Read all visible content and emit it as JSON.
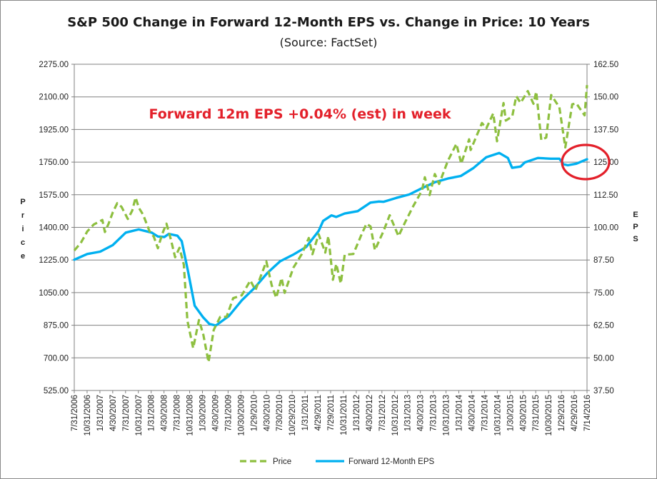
{
  "chart_data": {
    "type": "line",
    "title": "S&P 500 Change in Forward 12-Month EPS vs. Change in Price: 10 Years",
    "subtitle": "(Source: FactSet)",
    "ylabel": "Price",
    "y2label": "EPS",
    "ylim": [
      525,
      2275
    ],
    "y2lim": [
      37.5,
      162.5
    ],
    "y_ticks": [
      "2275.00",
      "2100.00",
      "1925.00",
      "1750.00",
      "1575.00",
      "1400.00",
      "1225.00",
      "1050.00",
      "875.00",
      "700.00",
      "525.00"
    ],
    "y2_ticks": [
      "162.50",
      "150.00",
      "137.50",
      "125.00",
      "112.50",
      "100.00",
      "87.50",
      "75.00",
      "62.50",
      "50.00",
      "37.50"
    ],
    "x_tick_labels": [
      "7/31/2006",
      "10/31/2006",
      "1/31/2007",
      "4/30/2007",
      "7/31/2007",
      "10/31/2007",
      "1/31/2008",
      "4/30/2008",
      "7/31/2008",
      "10/31/2008",
      "1/30/2009",
      "4/30/2009",
      "7/31/2009",
      "10/30/2009",
      "1/29/2010",
      "4/30/2010",
      "7/30/2010",
      "10/29/2010",
      "1/31/2011",
      "4/29/2011",
      "7/29/2011",
      "10/31/2011",
      "1/31/2012",
      "4/30/2012",
      "7/31/2012",
      "10/31/2012",
      "1/31/2013",
      "4/30/2013",
      "7/31/2013",
      "10/31/2013",
      "1/31/2014",
      "4/30/2014",
      "7/31/2014",
      "10/31/2014",
      "1/30/2015",
      "4/30/2015",
      "7/31/2015",
      "10/30/2015",
      "1/29/2016",
      "4/29/2016",
      "7/14/2016"
    ],
    "grid": "horizontal",
    "legend_position": "bottom",
    "series": [
      {
        "name": "Price",
        "axis": "left",
        "color": "#8DBF3F",
        "style": "dashed",
        "points": [
          [
            "2006-07-31",
            1276
          ],
          [
            "2006-09-15",
            1316
          ],
          [
            "2006-10-31",
            1378
          ],
          [
            "2006-12-15",
            1415
          ],
          [
            "2007-01-15",
            1427
          ],
          [
            "2007-02-15",
            1440
          ],
          [
            "2007-03-05",
            1375
          ],
          [
            "2007-04-01",
            1421
          ],
          [
            "2007-05-01",
            1482
          ],
          [
            "2007-06-01",
            1530
          ],
          [
            "2007-07-01",
            1510
          ],
          [
            "2007-08-15",
            1445
          ],
          [
            "2007-09-15",
            1490
          ],
          [
            "2007-10-09",
            1560
          ],
          [
            "2007-11-01",
            1505
          ],
          [
            "2007-12-01",
            1468
          ],
          [
            "2008-01-15",
            1380
          ],
          [
            "2008-02-15",
            1350
          ],
          [
            "2008-03-15",
            1288
          ],
          [
            "2008-04-15",
            1365
          ],
          [
            "2008-05-15",
            1420
          ],
          [
            "2008-06-15",
            1335
          ],
          [
            "2008-07-15",
            1240
          ],
          [
            "2008-08-15",
            1290
          ],
          [
            "2008-09-15",
            1200
          ],
          [
            "2008-10-10",
            900
          ],
          [
            "2008-11-20",
            752
          ],
          [
            "2008-12-31",
            903
          ],
          [
            "2009-01-31",
            825
          ],
          [
            "2009-03-09",
            677
          ],
          [
            "2009-04-15",
            850
          ],
          [
            "2009-05-31",
            920
          ],
          [
            "2009-07-15",
            920
          ],
          [
            "2009-08-31",
            1020
          ],
          [
            "2009-10-31",
            1036
          ],
          [
            "2009-12-31",
            1115
          ],
          [
            "2010-02-05",
            1063
          ],
          [
            "2010-04-23",
            1217
          ],
          [
            "2010-05-31",
            1089
          ],
          [
            "2010-07-02",
            1022
          ],
          [
            "2010-08-09",
            1128
          ],
          [
            "2010-08-31",
            1049
          ],
          [
            "2010-10-31",
            1183
          ],
          [
            "2010-12-31",
            1257
          ],
          [
            "2011-02-18",
            1343
          ],
          [
            "2011-03-16",
            1256
          ],
          [
            "2011-04-29",
            1363
          ],
          [
            "2011-06-15",
            1265
          ],
          [
            "2011-07-07",
            1353
          ],
          [
            "2011-08-08",
            1119
          ],
          [
            "2011-09-01",
            1204
          ],
          [
            "2011-10-03",
            1099
          ],
          [
            "2011-10-31",
            1253
          ],
          [
            "2011-12-31",
            1257
          ],
          [
            "2012-02-29",
            1365
          ],
          [
            "2012-04-02",
            1419
          ],
          [
            "2012-05-01",
            1405
          ],
          [
            "2012-06-01",
            1278
          ],
          [
            "2012-07-31",
            1379
          ],
          [
            "2012-09-14",
            1465
          ],
          [
            "2012-11-15",
            1353
          ],
          [
            "2012-12-31",
            1426
          ],
          [
            "2013-02-28",
            1514
          ],
          [
            "2013-04-30",
            1597
          ],
          [
            "2013-05-21",
            1669
          ],
          [
            "2013-06-24",
            1573
          ],
          [
            "2013-07-31",
            1686
          ],
          [
            "2013-08-30",
            1633
          ],
          [
            "2013-10-31",
            1756
          ],
          [
            "2013-12-31",
            1848
          ],
          [
            "2014-02-03",
            1742
          ],
          [
            "2014-03-31",
            1872
          ],
          [
            "2014-04-11",
            1815
          ],
          [
            "2014-06-30",
            1960
          ],
          [
            "2014-07-31",
            1931
          ],
          [
            "2014-09-18",
            2011
          ],
          [
            "2014-10-15",
            1862
          ],
          [
            "2014-11-30",
            2067
          ],
          [
            "2014-12-16",
            1973
          ],
          [
            "2015-01-31",
            1995
          ],
          [
            "2015-02-28",
            2104
          ],
          [
            "2015-03-31",
            2068
          ],
          [
            "2015-05-21",
            2131
          ],
          [
            "2015-06-30",
            2063
          ],
          [
            "2015-07-20",
            2128
          ],
          [
            "2015-08-25",
            1868
          ],
          [
            "2015-09-29",
            1882
          ],
          [
            "2015-11-03",
            2110
          ],
          [
            "2015-12-31",
            2044
          ],
          [
            "2016-02-11",
            1829
          ],
          [
            "2016-03-31",
            2060
          ],
          [
            "2016-04-29",
            2065
          ],
          [
            "2016-06-27",
            2001
          ],
          [
            "2016-07-14",
            2163
          ]
        ]
      },
      {
        "name": "Forward 12-Month EPS",
        "axis": "right",
        "color": "#00B0F0",
        "style": "solid",
        "points": [
          [
            "2006-07-31",
            87.6
          ],
          [
            "2006-10-31",
            89.8
          ],
          [
            "2007-01-31",
            90.7
          ],
          [
            "2007-04-30",
            93.2
          ],
          [
            "2007-07-31",
            98.0
          ],
          [
            "2007-10-31",
            99.2
          ],
          [
            "2008-01-31",
            98.0
          ],
          [
            "2008-03-15",
            96.5
          ],
          [
            "2008-04-30",
            96.3
          ],
          [
            "2008-05-31",
            97.5
          ],
          [
            "2008-07-31",
            96.8
          ],
          [
            "2008-08-31",
            94.7
          ],
          [
            "2008-10-15",
            83.0
          ],
          [
            "2008-12-01",
            70.0
          ],
          [
            "2009-01-30",
            65.5
          ],
          [
            "2009-03-15",
            63.0
          ],
          [
            "2009-04-30",
            62.4
          ],
          [
            "2009-07-31",
            66.0
          ],
          [
            "2009-10-30",
            72.0
          ],
          [
            "2010-01-29",
            76.8
          ],
          [
            "2010-04-30",
            82.5
          ],
          [
            "2010-07-30",
            87.0
          ],
          [
            "2010-10-29",
            89.5
          ],
          [
            "2011-01-31",
            92.5
          ],
          [
            "2011-04-29",
            98.6
          ],
          [
            "2011-05-31",
            102.5
          ],
          [
            "2011-07-29",
            104.6
          ],
          [
            "2011-08-31",
            104.0
          ],
          [
            "2011-10-31",
            105.3
          ],
          [
            "2012-01-31",
            106.2
          ],
          [
            "2012-04-30",
            109.5
          ],
          [
            "2012-06-30",
            109.9
          ],
          [
            "2012-07-31",
            109.8
          ],
          [
            "2012-10-31",
            111.3
          ],
          [
            "2013-01-31",
            112.6
          ],
          [
            "2013-04-30",
            115.0
          ],
          [
            "2013-07-31",
            117.3
          ],
          [
            "2013-10-31",
            118.7
          ],
          [
            "2014-01-31",
            119.7
          ],
          [
            "2014-04-30",
            122.7
          ],
          [
            "2014-07-31",
            126.9
          ],
          [
            "2014-10-31",
            128.5
          ],
          [
            "2014-12-31",
            126.6
          ],
          [
            "2015-01-30",
            122.8
          ],
          [
            "2015-03-31",
            123.3
          ],
          [
            "2015-04-30",
            124.9
          ],
          [
            "2015-07-31",
            126.6
          ],
          [
            "2015-10-30",
            126.3
          ],
          [
            "2015-12-31",
            126.3
          ],
          [
            "2016-01-29",
            124.2
          ],
          [
            "2016-02-29",
            123.8
          ],
          [
            "2016-04-29",
            124.4
          ],
          [
            "2016-07-14",
            126.1
          ]
        ]
      }
    ],
    "annotation": {
      "text": "Forward 12m EPS +0.04% (est) in week",
      "color": "#E3202A"
    },
    "highlight_color": "#E3202A",
    "grid_color": "#808080",
    "plot_border_color": "#808080"
  }
}
